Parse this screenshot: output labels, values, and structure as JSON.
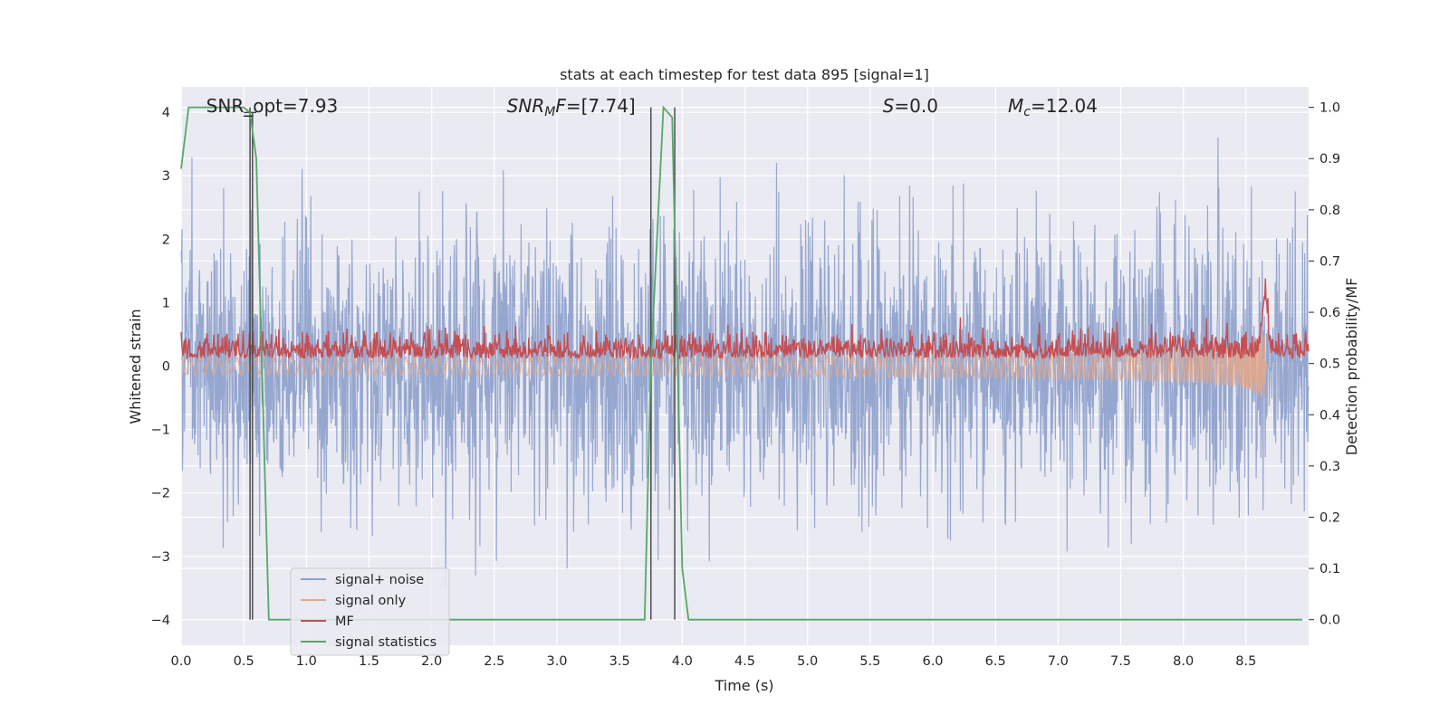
{
  "chart_data": {
    "type": "line",
    "title": "stats at each timestep for test data 895 [signal=1]",
    "xlabel": "Time (s)",
    "ylabel": "Whitened strain",
    "y2label": "Detection probability/MF",
    "xlim": [
      0.0,
      9.0
    ],
    "ylim": [
      -4.4,
      4.4
    ],
    "y2lim": [
      -0.05,
      1.04
    ],
    "x_ticks": [
      "0.0",
      "0.5",
      "1.0",
      "1.5",
      "2.0",
      "2.5",
      "3.0",
      "3.5",
      "4.0",
      "4.5",
      "5.0",
      "5.5",
      "6.0",
      "6.5",
      "7.0",
      "7.5",
      "8.0",
      "8.5"
    ],
    "y_ticks": [
      "4",
      "3",
      "2",
      "1",
      "0",
      "−1",
      "−2",
      "−3",
      "−4"
    ],
    "y2_ticks": [
      "1.0",
      "0.9",
      "0.8",
      "0.7",
      "0.6",
      "0.5",
      "0.4",
      "0.3",
      "0.2",
      "0.1",
      "0.0"
    ],
    "grid": true,
    "legend_position": "lower-left",
    "annotations": [
      {
        "id": "snr_opt",
        "text": "SNR_opt=7.93",
        "x": 0.2
      },
      {
        "id": "snr_mf",
        "text": "SNR_MF=[7.74]",
        "x": 2.6,
        "base": "SNR",
        "sub": "M",
        "tail": "F=[7.74]"
      },
      {
        "id": "s",
        "text": "S=0.0",
        "x": 5.6,
        "base": "S",
        "tail": "=0.0"
      },
      {
        "id": "mc",
        "text": "M_c=12.04",
        "x": 6.6,
        "base": "M",
        "sub": "c",
        "tail": "=12.04"
      }
    ],
    "series": [
      {
        "name": "signal+ noise",
        "color": "#8da0cb",
        "axis": "left",
        "kind": "noise",
        "envelope_sigma": 1.1,
        "peak_max": 3.6,
        "x_range": [
          0.0,
          9.0
        ]
      },
      {
        "name": "signal only",
        "color": "#e5a88a",
        "axis": "left",
        "kind": "chirp",
        "merger_time": 8.65,
        "amplitude_at_merger": 1.3,
        "x_range": [
          0.0,
          8.7
        ]
      },
      {
        "name": "MF",
        "color": "#c44e52",
        "axis": "right",
        "kind": "mf",
        "baseline": 0.5,
        "noise_amp": 0.03,
        "peak_x": 8.65,
        "peak_value": 0.61,
        "x_range": [
          0.0,
          9.0
        ]
      },
      {
        "name": "signal statistics",
        "color": "#55a868",
        "axis": "right",
        "kind": "step",
        "x": [
          0.0,
          0.06,
          0.5,
          0.55,
          0.6,
          0.7,
          3.7,
          3.75,
          3.85,
          3.92,
          4.0,
          4.05,
          8.95
        ],
        "y": [
          0.88,
          1.0,
          1.0,
          0.99,
          0.9,
          0.0,
          0.0,
          0.5,
          1.0,
          0.98,
          0.1,
          0.0,
          0.0
        ]
      }
    ],
    "vlines": [
      {
        "x": 0.55,
        "y_from": 0.0,
        "y_to": 1.0
      },
      {
        "x": 0.57,
        "y_from": 0.0,
        "y_to": 0.99
      },
      {
        "x": 3.75,
        "y_from": 0.0,
        "y_to": 1.0
      },
      {
        "x": 3.94,
        "y_from": 0.0,
        "y_to": 1.0
      }
    ]
  },
  "legend": {
    "items": [
      {
        "label": "signal+ noise",
        "color": "#8da0cb"
      },
      {
        "label": "signal only",
        "color": "#e5a88a"
      },
      {
        "label": "MF",
        "color": "#c44e52"
      },
      {
        "label": "signal statistics",
        "color": "#55a868"
      }
    ]
  }
}
